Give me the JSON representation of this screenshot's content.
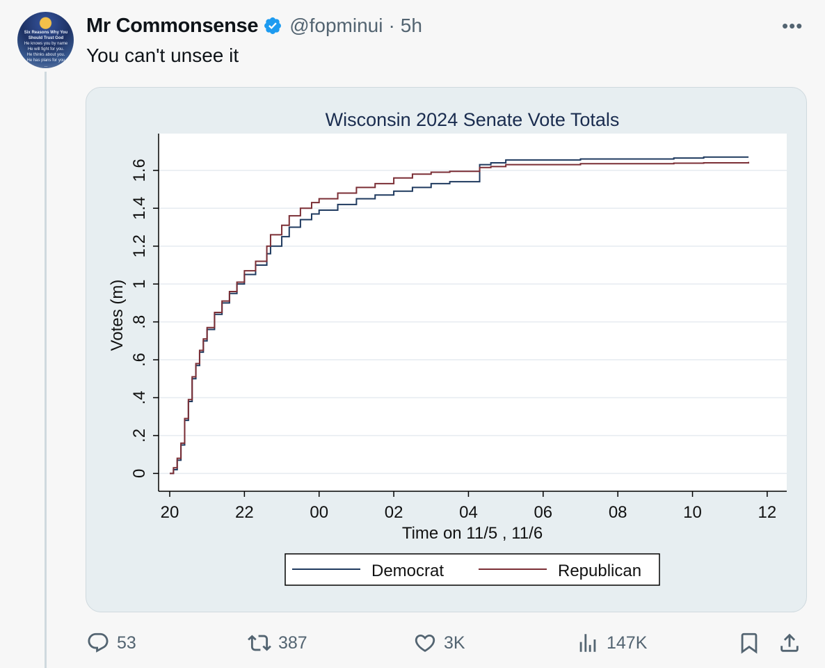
{
  "tweet": {
    "author_name": "Mr Commonsense",
    "handle": "@fopminui",
    "separator": "·",
    "time": "5h",
    "text": "You can't unsee it",
    "more_icon": "more-horizontal-icon",
    "verified_color": "#1d9bf0",
    "avatar_text": [
      "Six Reasons Why You",
      "Should Trust God",
      "He knows you by name",
      "He will fight for you.",
      "He thinks about you.",
      "He has plans for you",
      "..."
    ]
  },
  "actions": {
    "replies": "53",
    "reposts": "387",
    "likes": "3K",
    "views": "147K"
  },
  "chart_data": {
    "type": "line",
    "title": "Wisconsin 2024 Senate Vote Totals",
    "xlabel": "Time on 11/5 , 11/6",
    "ylabel": "Votes (m)",
    "x_tick_labels": [
      "20",
      "22",
      "00",
      "02",
      "04",
      "06",
      "08",
      "10",
      "12"
    ],
    "y_tick_labels": [
      "0",
      ".2",
      ".4",
      ".6",
      ".8",
      "1",
      "1.2",
      "1.4",
      "1.6"
    ],
    "xlim": [
      20,
      36.3
    ],
    "ylim": [
      -0.05,
      1.75
    ],
    "grid": true,
    "legend_position": "bottom",
    "series": [
      {
        "name": "Democrat",
        "color": "#1f3a5f",
        "points": [
          [
            20.0,
            0.0
          ],
          [
            20.1,
            0.02
          ],
          [
            20.2,
            0.07
          ],
          [
            20.3,
            0.15
          ],
          [
            20.4,
            0.28
          ],
          [
            20.5,
            0.38
          ],
          [
            20.6,
            0.5
          ],
          [
            20.7,
            0.57
          ],
          [
            20.8,
            0.64
          ],
          [
            20.9,
            0.7
          ],
          [
            21.0,
            0.76
          ],
          [
            21.2,
            0.84
          ],
          [
            21.4,
            0.9
          ],
          [
            21.6,
            0.95
          ],
          [
            21.8,
            1.0
          ],
          [
            22.0,
            1.05
          ],
          [
            22.3,
            1.1
          ],
          [
            22.6,
            1.16
          ],
          [
            22.7,
            1.2
          ],
          [
            23.0,
            1.25
          ],
          [
            23.2,
            1.3
          ],
          [
            23.5,
            1.34
          ],
          [
            23.8,
            1.37
          ],
          [
            24.0,
            1.39
          ],
          [
            24.5,
            1.42
          ],
          [
            25.0,
            1.45
          ],
          [
            25.5,
            1.47
          ],
          [
            26.0,
            1.49
          ],
          [
            26.5,
            1.51
          ],
          [
            27.0,
            1.53
          ],
          [
            27.5,
            1.54
          ],
          [
            28.2,
            1.54
          ],
          [
            28.3,
            1.63
          ],
          [
            28.6,
            1.64
          ],
          [
            29.0,
            1.655
          ],
          [
            31.0,
            1.66
          ],
          [
            33.5,
            1.665
          ],
          [
            34.3,
            1.67
          ],
          [
            35.5,
            1.67
          ]
        ]
      },
      {
        "name": "Republican",
        "color": "#7b2e35",
        "points": [
          [
            20.0,
            0.0
          ],
          [
            20.1,
            0.03
          ],
          [
            20.2,
            0.08
          ],
          [
            20.3,
            0.16
          ],
          [
            20.4,
            0.29
          ],
          [
            20.5,
            0.39
          ],
          [
            20.6,
            0.51
          ],
          [
            20.7,
            0.58
          ],
          [
            20.8,
            0.65
          ],
          [
            20.9,
            0.71
          ],
          [
            21.0,
            0.77
          ],
          [
            21.2,
            0.85
          ],
          [
            21.4,
            0.91
          ],
          [
            21.6,
            0.96
          ],
          [
            21.8,
            1.01
          ],
          [
            22.0,
            1.07
          ],
          [
            22.3,
            1.12
          ],
          [
            22.6,
            1.2
          ],
          [
            22.7,
            1.26
          ],
          [
            23.0,
            1.31
          ],
          [
            23.2,
            1.36
          ],
          [
            23.5,
            1.4
          ],
          [
            23.8,
            1.43
          ],
          [
            24.0,
            1.45
          ],
          [
            24.5,
            1.48
          ],
          [
            25.0,
            1.51
          ],
          [
            25.5,
            1.53
          ],
          [
            26.0,
            1.56
          ],
          [
            26.5,
            1.58
          ],
          [
            27.0,
            1.59
          ],
          [
            27.5,
            1.595
          ],
          [
            28.2,
            1.595
          ],
          [
            28.3,
            1.615
          ],
          [
            28.6,
            1.62
          ],
          [
            29.0,
            1.63
          ],
          [
            31.0,
            1.635
          ],
          [
            33.5,
            1.638
          ],
          [
            34.3,
            1.64
          ],
          [
            35.5,
            1.645
          ]
        ]
      }
    ]
  }
}
